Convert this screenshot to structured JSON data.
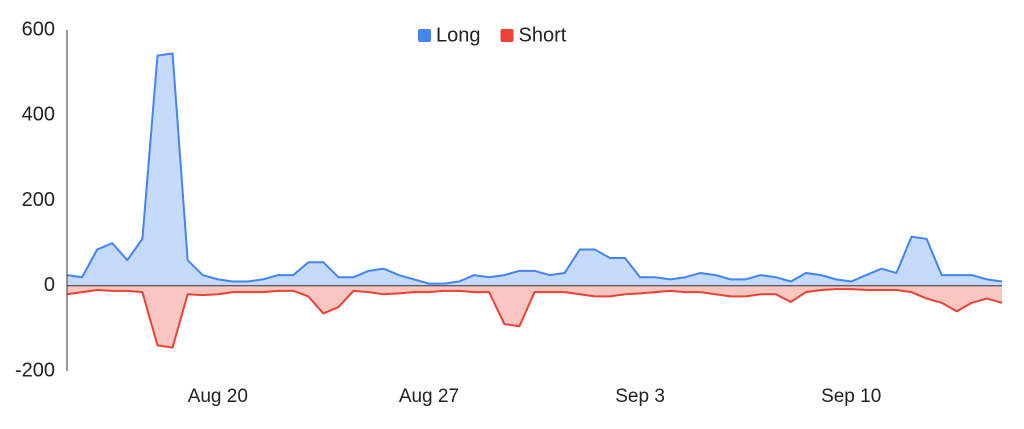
{
  "chart_data": {
    "type": "area",
    "categories": [
      null,
      null,
      null,
      null,
      null,
      null,
      null,
      null,
      null,
      null,
      "Aug 20",
      null,
      null,
      null,
      null,
      null,
      null,
      null,
      null,
      null,
      null,
      null,
      null,
      null,
      "Aug 27",
      null,
      null,
      null,
      null,
      null,
      null,
      null,
      null,
      null,
      null,
      null,
      null,
      null,
      "Sep 3",
      null,
      null,
      null,
      null,
      null,
      null,
      null,
      null,
      null,
      null,
      null,
      null,
      null,
      "Sep 10",
      null,
      null,
      null,
      null,
      null,
      null,
      null,
      null,
      null,
      null
    ],
    "series": [
      {
        "name": "Long",
        "color": "#4285f4",
        "values": [
          25,
          20,
          85,
          100,
          60,
          110,
          540,
          545,
          60,
          25,
          15,
          10,
          10,
          15,
          25,
          25,
          55,
          55,
          20,
          20,
          35,
          40,
          25,
          15,
          5,
          5,
          10,
          25,
          20,
          25,
          35,
          35,
          25,
          30,
          85,
          85,
          65,
          65,
          20,
          20,
          15,
          20,
          30,
          25,
          15,
          15,
          25,
          20,
          10,
          30,
          25,
          15,
          10,
          25,
          40,
          30,
          115,
          110,
          25,
          25,
          25,
          15,
          10
        ]
      },
      {
        "name": "Short",
        "color": "#ea4335",
        "values": [
          -20,
          -15,
          -10,
          -12,
          -12,
          -15,
          -140,
          -145,
          -20,
          -22,
          -20,
          -15,
          -15,
          -15,
          -12,
          -12,
          -25,
          -65,
          -50,
          -12,
          -15,
          -20,
          -18,
          -15,
          -15,
          -12,
          -12,
          -15,
          -15,
          -90,
          -95,
          -15,
          -15,
          -15,
          -20,
          -25,
          -25,
          -20,
          -18,
          -15,
          -12,
          -15,
          -15,
          -20,
          -25,
          -25,
          -20,
          -20,
          -38,
          -15,
          -10,
          -8,
          -8,
          -10,
          -10,
          -10,
          -15,
          -30,
          -40,
          -60,
          -40,
          -30,
          -40
        ]
      }
    ],
    "ylim": [
      -200,
      600
    ],
    "yticks": [
      -200,
      0,
      200,
      400,
      600
    ],
    "grid": false,
    "legend": "top"
  }
}
